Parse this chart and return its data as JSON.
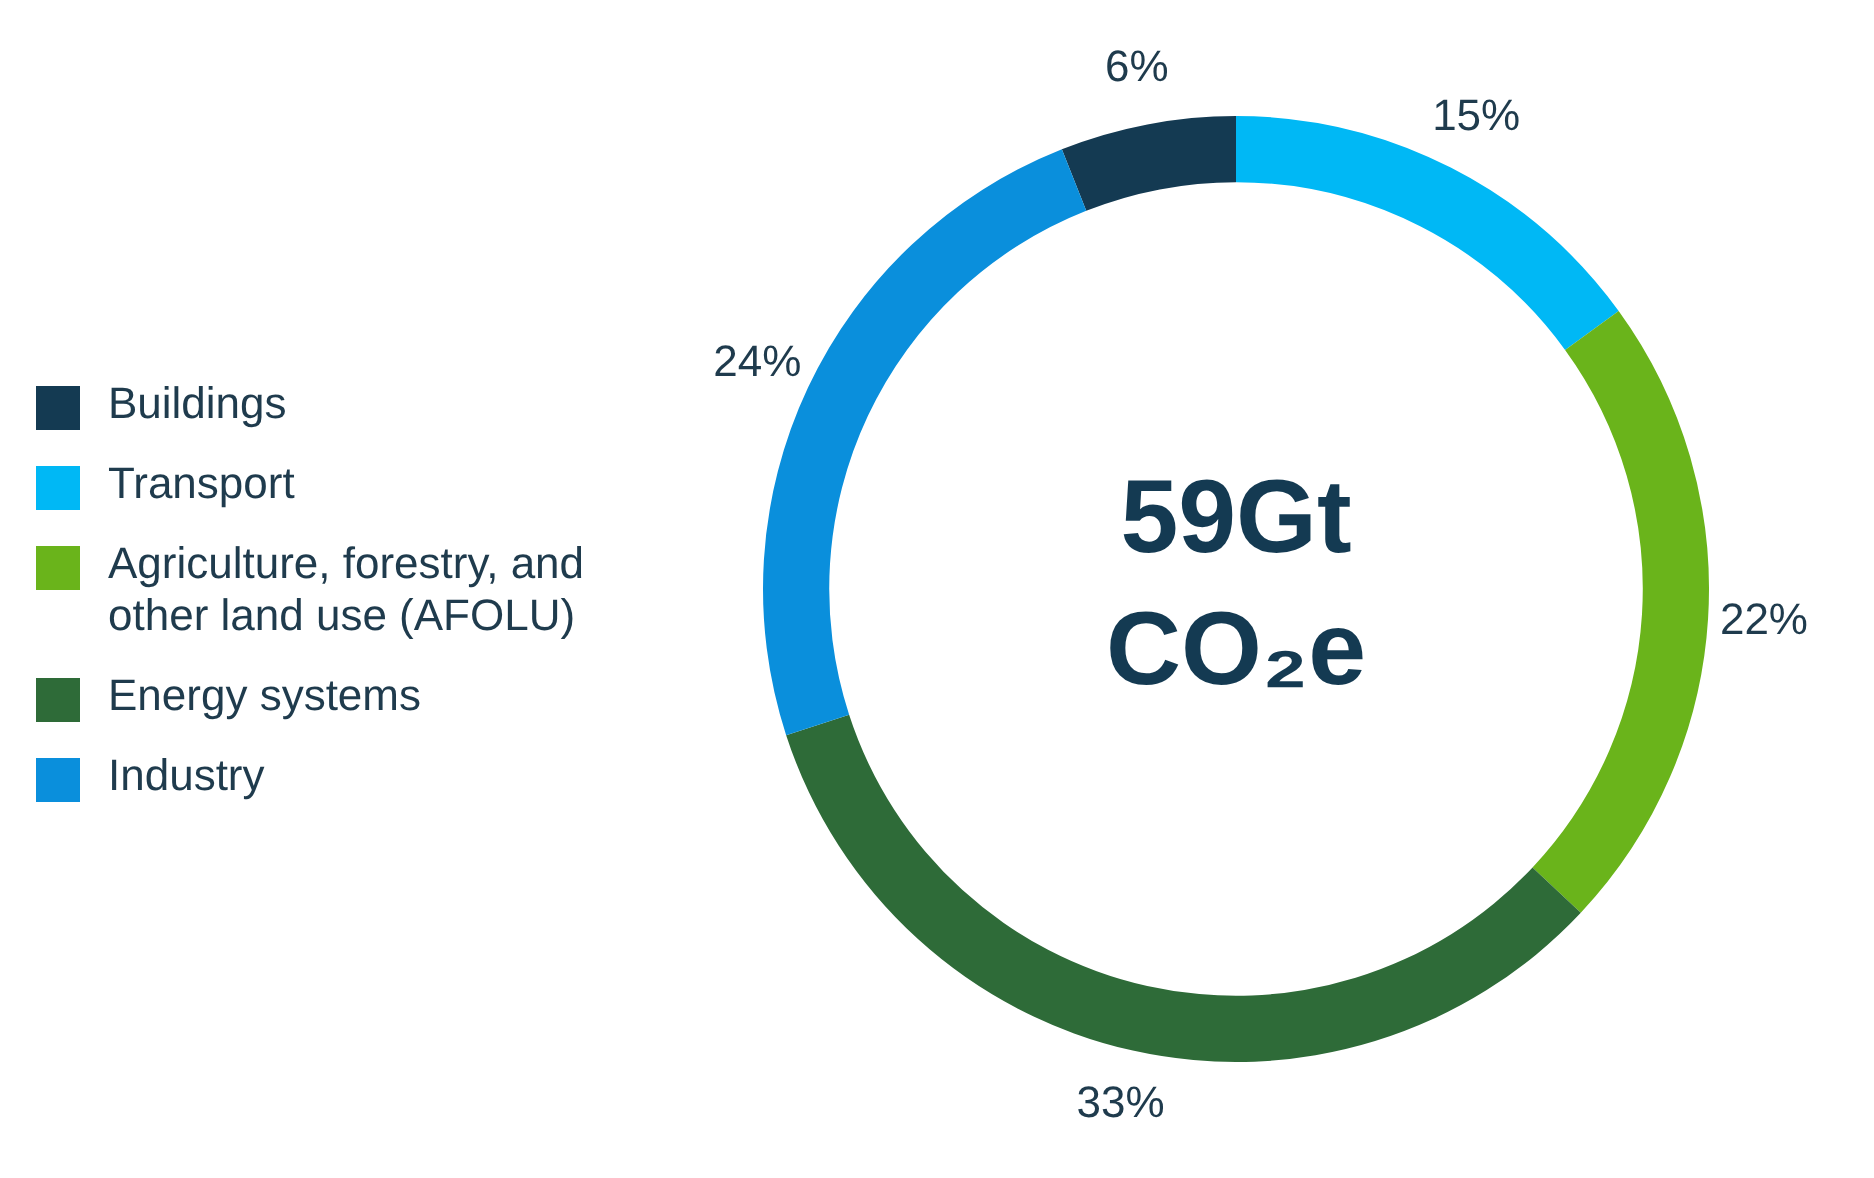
{
  "chart_data": {
    "type": "donut",
    "categories": [
      "Buildings",
      "Transport",
      "Agriculture, forestry, and other land use (AFOLU)",
      "Energy systems",
      "Industry"
    ],
    "values": [
      6,
      15,
      22,
      33,
      24
    ],
    "colors": [
      "#143a52",
      "#00b8f5",
      "#6ab41b",
      "#2e6b38",
      "#0a8fdc"
    ],
    "value_labels": [
      "6%",
      "15%",
      "22%",
      "33%",
      "24%"
    ],
    "annotations": [
      "59Gt CO₂e"
    ],
    "legend": "left"
  }
}
